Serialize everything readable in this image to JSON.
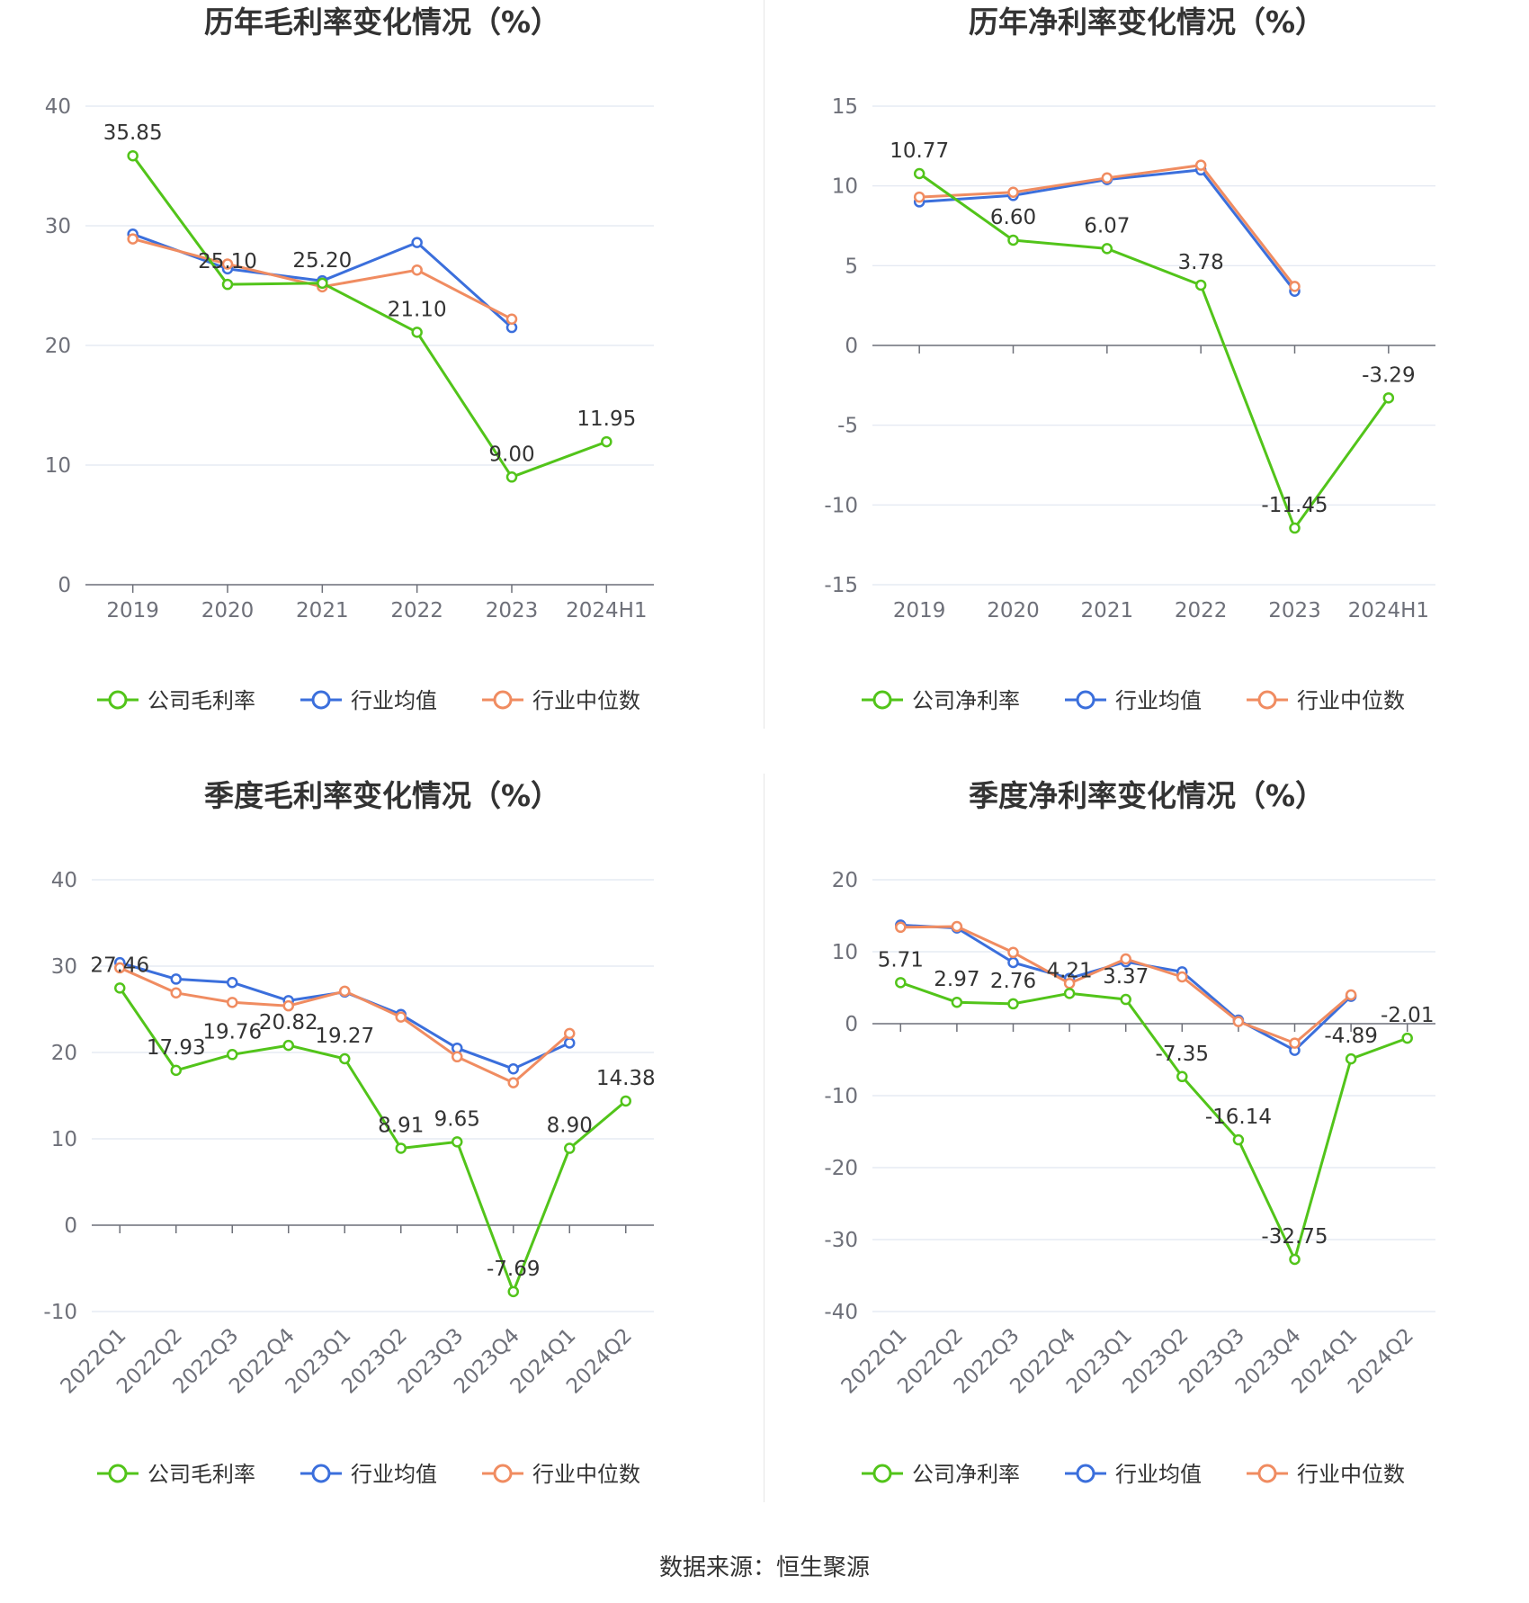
{
  "source_label": "数据来源：恒生聚源",
  "chart_data": [
    {
      "type": "line",
      "title": "历年毛利率变化情况（%）",
      "categories": [
        "2019",
        "2020",
        "2021",
        "2022",
        "2023",
        "2024H1"
      ],
      "ylim": [
        0,
        40
      ],
      "yticks": [
        0,
        10,
        20,
        30,
        40
      ],
      "grid": true,
      "legend_position": "bottom-center",
      "series": [
        {
          "name": "公司毛利率",
          "color": "#52c41a",
          "values": [
            35.85,
            25.1,
            25.2,
            21.1,
            9.0,
            11.95
          ],
          "labels": [
            "35.85",
            "25.10",
            "25.20",
            "21.10",
            "9.00",
            "11.95"
          ],
          "show_labels": true
        },
        {
          "name": "行业均值",
          "color": "#3b6fdc",
          "values": [
            29.3,
            26.4,
            25.4,
            28.6,
            21.5,
            null
          ],
          "show_labels": false
        },
        {
          "name": "行业中位数",
          "color": "#f08c61",
          "values": [
            28.9,
            26.8,
            24.9,
            26.3,
            22.2,
            null
          ],
          "show_labels": false
        }
      ]
    },
    {
      "type": "line",
      "title": "历年净利率变化情况（%）",
      "categories": [
        "2019",
        "2020",
        "2021",
        "2022",
        "2023",
        "2024H1"
      ],
      "ylim": [
        -15,
        15
      ],
      "yticks": [
        -15,
        -10,
        -5,
        0,
        5,
        10,
        15
      ],
      "grid": true,
      "legend_position": "bottom-center",
      "series": [
        {
          "name": "公司净利率",
          "color": "#52c41a",
          "values": [
            10.77,
            6.6,
            6.07,
            3.78,
            -11.45,
            -3.29
          ],
          "labels": [
            "10.77",
            "6.60",
            "6.07",
            "3.78",
            "-11.45",
            "-3.29"
          ],
          "show_labels": true
        },
        {
          "name": "行业均值",
          "color": "#3b6fdc",
          "values": [
            9.0,
            9.4,
            10.4,
            11.0,
            3.4,
            null
          ],
          "show_labels": false
        },
        {
          "name": "行业中位数",
          "color": "#f08c61",
          "values": [
            9.3,
            9.6,
            10.5,
            11.3,
            3.7,
            null
          ],
          "show_labels": false
        }
      ]
    },
    {
      "type": "line",
      "title": "季度毛利率变化情况（%）",
      "categories": [
        "2022Q1",
        "2022Q2",
        "2022Q3",
        "2022Q4",
        "2023Q1",
        "2023Q2",
        "2023Q3",
        "2023Q4",
        "2024Q1",
        "2024Q2"
      ],
      "ylim": [
        -10,
        40
      ],
      "yticks": [
        -10,
        0,
        10,
        20,
        30,
        40
      ],
      "grid": true,
      "legend_position": "bottom-center",
      "series": [
        {
          "name": "公司毛利率",
          "color": "#52c41a",
          "values": [
            27.46,
            17.93,
            19.76,
            20.82,
            19.27,
            8.91,
            9.65,
            -7.69,
            8.9,
            14.38
          ],
          "labels": [
            "27.46",
            "17.93",
            "19.76",
            "20.82",
            "19.27",
            "8.91",
            "9.65",
            "-7.69",
            "8.90",
            "14.38"
          ],
          "show_labels": true
        },
        {
          "name": "行业均值",
          "color": "#3b6fdc",
          "values": [
            30.4,
            28.5,
            28.1,
            26.0,
            27.0,
            24.4,
            20.5,
            18.1,
            21.1,
            null
          ],
          "show_labels": false
        },
        {
          "name": "行业中位数",
          "color": "#f08c61",
          "values": [
            29.8,
            26.9,
            25.8,
            25.4,
            27.1,
            24.1,
            19.5,
            16.5,
            22.2,
            null
          ],
          "show_labels": false
        }
      ]
    },
    {
      "type": "line",
      "title": "季度净利率变化情况（%）",
      "categories": [
        "2022Q1",
        "2022Q2",
        "2022Q3",
        "2022Q4",
        "2023Q1",
        "2023Q2",
        "2023Q3",
        "2023Q4",
        "2024Q1",
        "2024Q2"
      ],
      "ylim": [
        -40,
        20
      ],
      "yticks": [
        -40,
        -30,
        -20,
        -10,
        0,
        10,
        20
      ],
      "grid": true,
      "legend_position": "bottom-center",
      "series": [
        {
          "name": "公司净利率",
          "color": "#52c41a",
          "values": [
            5.71,
            2.97,
            2.76,
            4.21,
            3.37,
            -7.35,
            -16.14,
            -32.75,
            -4.89,
            -2.01
          ],
          "labels": [
            "5.71",
            "2.97",
            "2.76",
            "4.21",
            "3.37",
            "-7.35",
            "-16.14",
            "-32.75",
            "-4.89",
            "-2.01"
          ],
          "show_labels": true
        },
        {
          "name": "行业均值",
          "color": "#3b6fdc",
          "values": [
            13.7,
            13.3,
            8.5,
            6.3,
            8.6,
            7.2,
            0.5,
            -3.7,
            3.8,
            null
          ],
          "show_labels": false
        },
        {
          "name": "行业中位数",
          "color": "#f08c61",
          "values": [
            13.4,
            13.5,
            9.9,
            5.6,
            9.0,
            6.5,
            0.3,
            -2.7,
            4.0,
            null
          ],
          "show_labels": false
        }
      ]
    }
  ]
}
